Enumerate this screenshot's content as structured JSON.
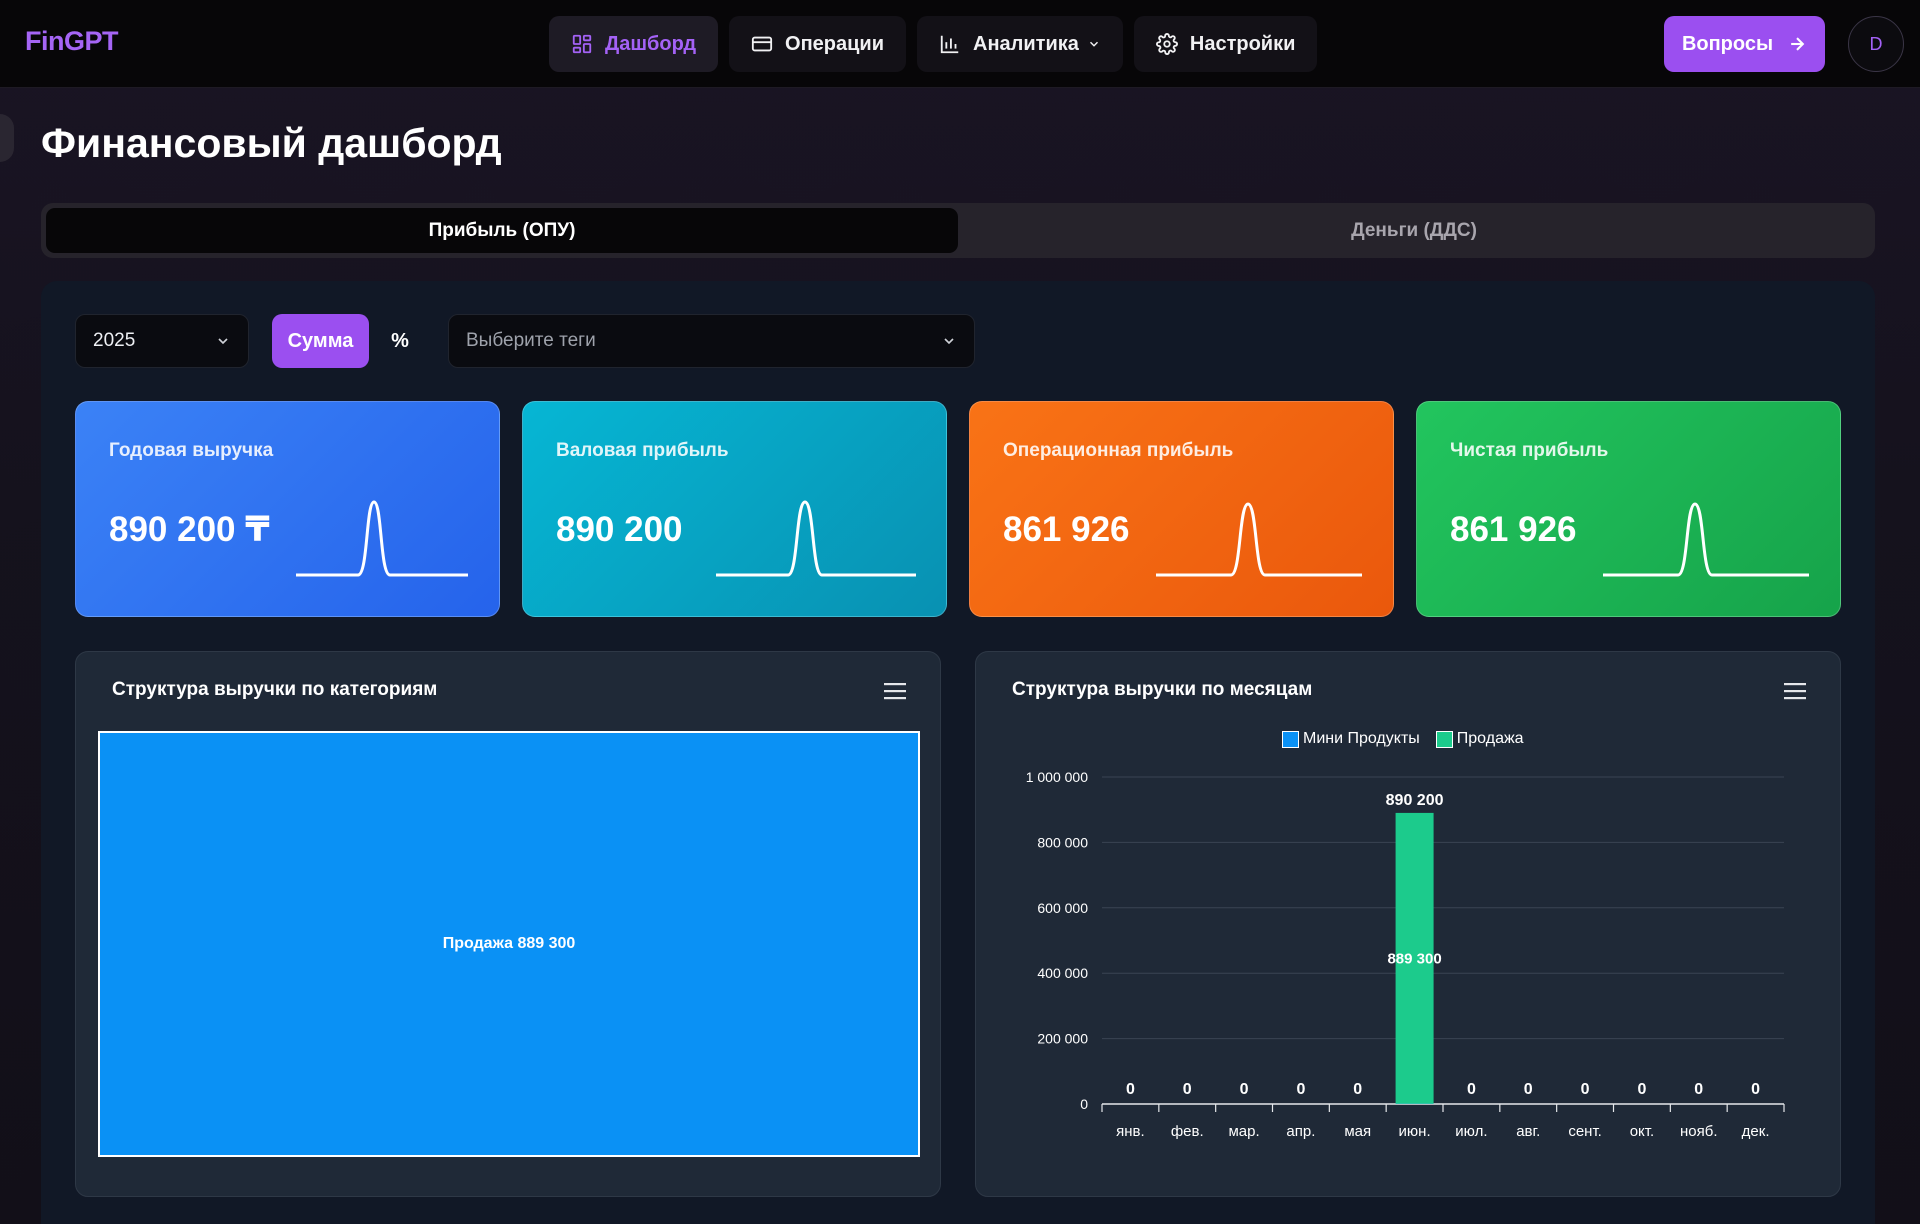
{
  "app": {
    "logo": "FinGPT",
    "avatar_initial": "D"
  },
  "nav": {
    "items": [
      {
        "label": "Дашборд",
        "icon": "dashboard-grid-icon",
        "active": true
      },
      {
        "label": "Операции",
        "icon": "card-icon",
        "active": false
      },
      {
        "label": "Аналитика",
        "icon": "bar-chart-icon",
        "active": false,
        "dropdown": true
      },
      {
        "label": "Настройки",
        "icon": "gear-icon",
        "active": false
      }
    ],
    "ask_button": "Вопросы"
  },
  "page": {
    "title": "Финансовый дашборд"
  },
  "tabs": [
    {
      "label": "Прибыль (ОПУ)",
      "active": true
    },
    {
      "label": "Деньги (ДДС)",
      "active": false
    }
  ],
  "filters": {
    "year": "2025",
    "mode_sum": "Сумма",
    "mode_pct": "%",
    "tags_placeholder": "Выберите теги"
  },
  "kpis": [
    {
      "label": "Годовая выручка",
      "value": "890 200 ₸",
      "color": "#3b82f6"
    },
    {
      "label": "Валовая прибыль",
      "value": "890 200",
      "color": "#06b6d4"
    },
    {
      "label": "Операционная прибыль",
      "value": "861 926",
      "color": "#f97316"
    },
    {
      "label": "Чистая прибыль",
      "value": "861 926",
      "color": "#22c55e"
    }
  ],
  "category_chart": {
    "title": "Структура выручки по категориям",
    "label": "Продажа 889 300"
  },
  "chart_data": [
    {
      "type": "treemap",
      "title": "Структура выручки по категориям",
      "items": [
        {
          "name": "Продажа",
          "value": 889300,
          "color": "#0a91f5"
        }
      ]
    },
    {
      "type": "bar",
      "title": "Структура выручки по месяцам",
      "stacked": true,
      "categories": [
        "янв.",
        "фев.",
        "мар.",
        "апр.",
        "мая",
        "июн.",
        "июл.",
        "авг.",
        "сент.",
        "окт.",
        "нояб.",
        "дек."
      ],
      "series": [
        {
          "name": "Мини Продукты",
          "color": "#0a91f5",
          "values": [
            0,
            0,
            0,
            0,
            0,
            900,
            0,
            0,
            0,
            0,
            0,
            0
          ]
        },
        {
          "name": "Продажа",
          "color": "#1ccb8c",
          "values": [
            0,
            0,
            0,
            0,
            0,
            889300,
            0,
            0,
            0,
            0,
            0,
            0
          ]
        }
      ],
      "totals": [
        "0",
        "0",
        "0",
        "0",
        "0",
        "890 200",
        "0",
        "0",
        "0",
        "0",
        "0",
        "0"
      ],
      "inner_label": "889 300",
      "ylim": [
        0,
        1000000
      ],
      "yticks": [
        {
          "value": 0,
          "label": "0"
        },
        {
          "value": 200000,
          "label": "200 000"
        },
        {
          "value": 400000,
          "label": "400 000"
        },
        {
          "value": 600000,
          "label": "600 000"
        },
        {
          "value": 800000,
          "label": "800 000"
        },
        {
          "value": 1000000,
          "label": "1 000 000"
        }
      ],
      "legend": "top-center",
      "grid": true
    }
  ]
}
